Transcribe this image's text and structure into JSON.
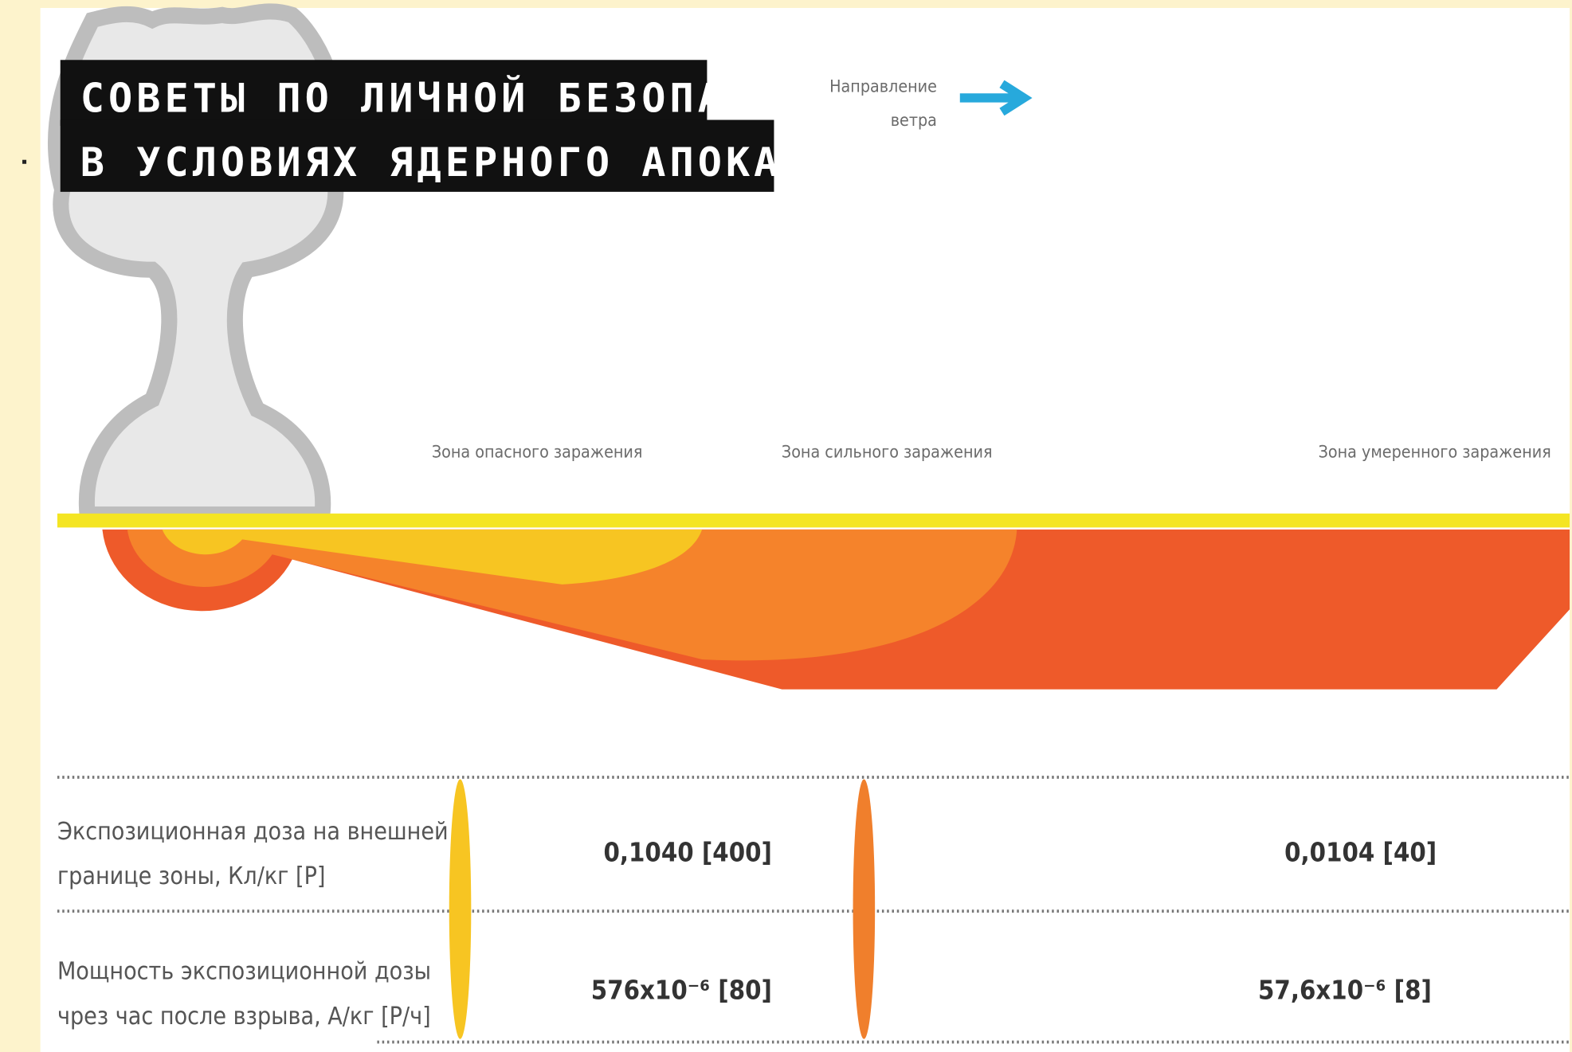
{
  "title": [
    "СОВЕТЫ ПО ЛИЧНОЙ БЕЗОПАСНОСТИ",
    "В УСЛОВИЯХ ЯДЕРНОГО АПОКАЛИПСИСА"
  ],
  "wind": [
    "Направление",
    "ветра"
  ],
  "zones": [
    "Зона опасного заражения",
    "Зона сильного заражения",
    "Зона умеренного заражения"
  ],
  "rows": [
    {
      "label": [
        "Экспозиционная доза на внешней",
        "границе зоны, Кл/кг [Р]"
      ],
      "values": [
        "0,1040 [400]",
        "0,0104 [40]"
      ]
    },
    {
      "label": [
        "Мощность экспозиционной дозы",
        "чрез час после взрыва, А/кг [Р/ч]"
      ],
      "values": [
        "576х10⁻⁶ [80]",
        "57,6х10⁻⁶ [8]"
      ]
    }
  ]
}
